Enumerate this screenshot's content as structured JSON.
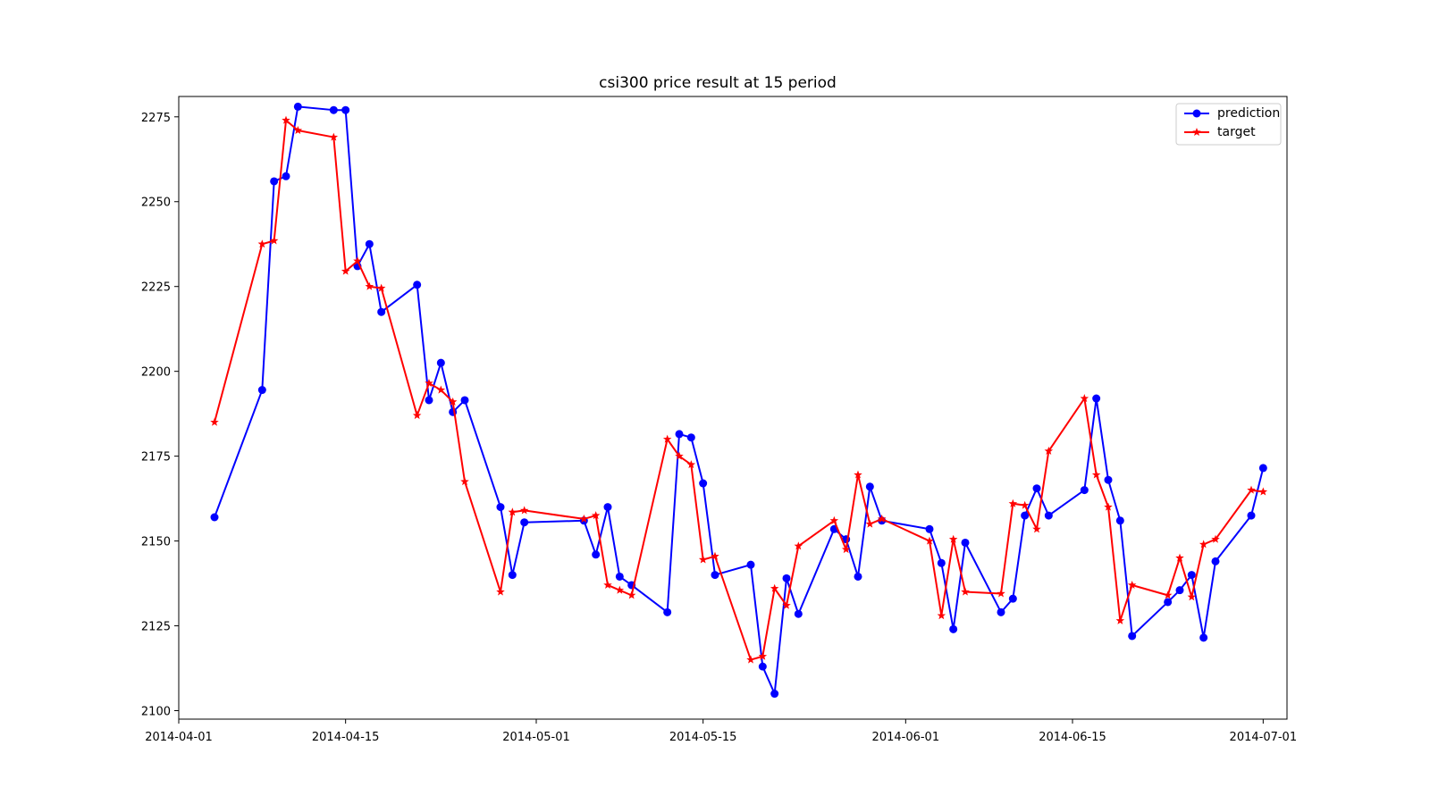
{
  "chart_data": {
    "type": "line",
    "title": "csi300 price result at 15 period",
    "xlabel": "",
    "ylabel": "",
    "xlim": [
      "2014-04-01",
      "2014-07-03"
    ],
    "ylim": [
      2097.5,
      2281
    ],
    "grid": false,
    "legend_position": "top-right",
    "x_ticks": [
      "2014-04-01",
      "2014-04-15",
      "2014-05-01",
      "2014-05-15",
      "2014-06-01",
      "2014-06-15",
      "2014-07-01"
    ],
    "y_ticks": [
      2100,
      2125,
      2150,
      2175,
      2200,
      2225,
      2250,
      2275
    ],
    "x": [
      "2014-04-04",
      "2014-04-08",
      "2014-04-09",
      "2014-04-10",
      "2014-04-11",
      "2014-04-14",
      "2014-04-15",
      "2014-04-16",
      "2014-04-17",
      "2014-04-18",
      "2014-04-21",
      "2014-04-22",
      "2014-04-23",
      "2014-04-24",
      "2014-04-25",
      "2014-04-28",
      "2014-04-29",
      "2014-04-30",
      "2014-05-05",
      "2014-05-06",
      "2014-05-07",
      "2014-05-08",
      "2014-05-09",
      "2014-05-12",
      "2014-05-13",
      "2014-05-14",
      "2014-05-15",
      "2014-05-16",
      "2014-05-19",
      "2014-05-20",
      "2014-05-21",
      "2014-05-22",
      "2014-05-23",
      "2014-05-26",
      "2014-05-27",
      "2014-05-28",
      "2014-05-29",
      "2014-05-30",
      "2014-06-03",
      "2014-06-04",
      "2014-06-05",
      "2014-06-06",
      "2014-06-09",
      "2014-06-10",
      "2014-06-11",
      "2014-06-12",
      "2014-06-13",
      "2014-06-16",
      "2014-06-17",
      "2014-06-18",
      "2014-06-19",
      "2014-06-20",
      "2014-06-23",
      "2014-06-24",
      "2014-06-25",
      "2014-06-26",
      "2014-06-27",
      "2014-06-30",
      "2014-07-01"
    ],
    "series": [
      {
        "name": "prediction",
        "color": "#0000ff",
        "marker": "circle",
        "values": [
          2157,
          2194.5,
          2256,
          2257.5,
          2278,
          2277,
          2277,
          2231,
          2237.5,
          2217.5,
          2225.5,
          2191.5,
          2202.5,
          2188,
          2191.5,
          2160,
          2140,
          2155.5,
          2156,
          2146,
          2160,
          2139.5,
          2137,
          2129,
          2181.5,
          2180.5,
          2167,
          2140,
          2143,
          2113,
          2105,
          2139,
          2128.5,
          2153.5,
          2150.5,
          2139.5,
          2166,
          2156,
          2153.5,
          2143.5,
          2124,
          2149.5,
          2129,
          2133,
          2157.5,
          2165.5,
          2157.5,
          2165,
          2192,
          2168,
          2156,
          2122,
          2132,
          2135.5,
          2140,
          2121.5,
          2144,
          2157.5,
          2171.5
        ]
      },
      {
        "name": "target",
        "color": "#ff0000",
        "marker": "star",
        "values": [
          2185,
          2237.5,
          2238.5,
          2274,
          2271,
          2269,
          2229.5,
          2232.5,
          2225,
          2224.5,
          2187,
          2196.5,
          2194.5,
          2191,
          2167.5,
          2135,
          2158.5,
          2159,
          2156.5,
          2157.5,
          2137,
          2135.5,
          2134,
          2180,
          2175,
          2172.5,
          2144.5,
          2145.5,
          2115,
          2116,
          2136,
          2131,
          2148.5,
          2156,
          2147.5,
          2169.5,
          2155,
          2156.5,
          2150,
          2128,
          2150.5,
          2135,
          2134.5,
          2161,
          2160.5,
          2153.5,
          2176.5,
          2192,
          2169.5,
          2160,
          2126.5,
          2137,
          2134,
          2145,
          2133.5,
          2149,
          2150.5,
          2165,
          2164.5
        ]
      }
    ]
  }
}
